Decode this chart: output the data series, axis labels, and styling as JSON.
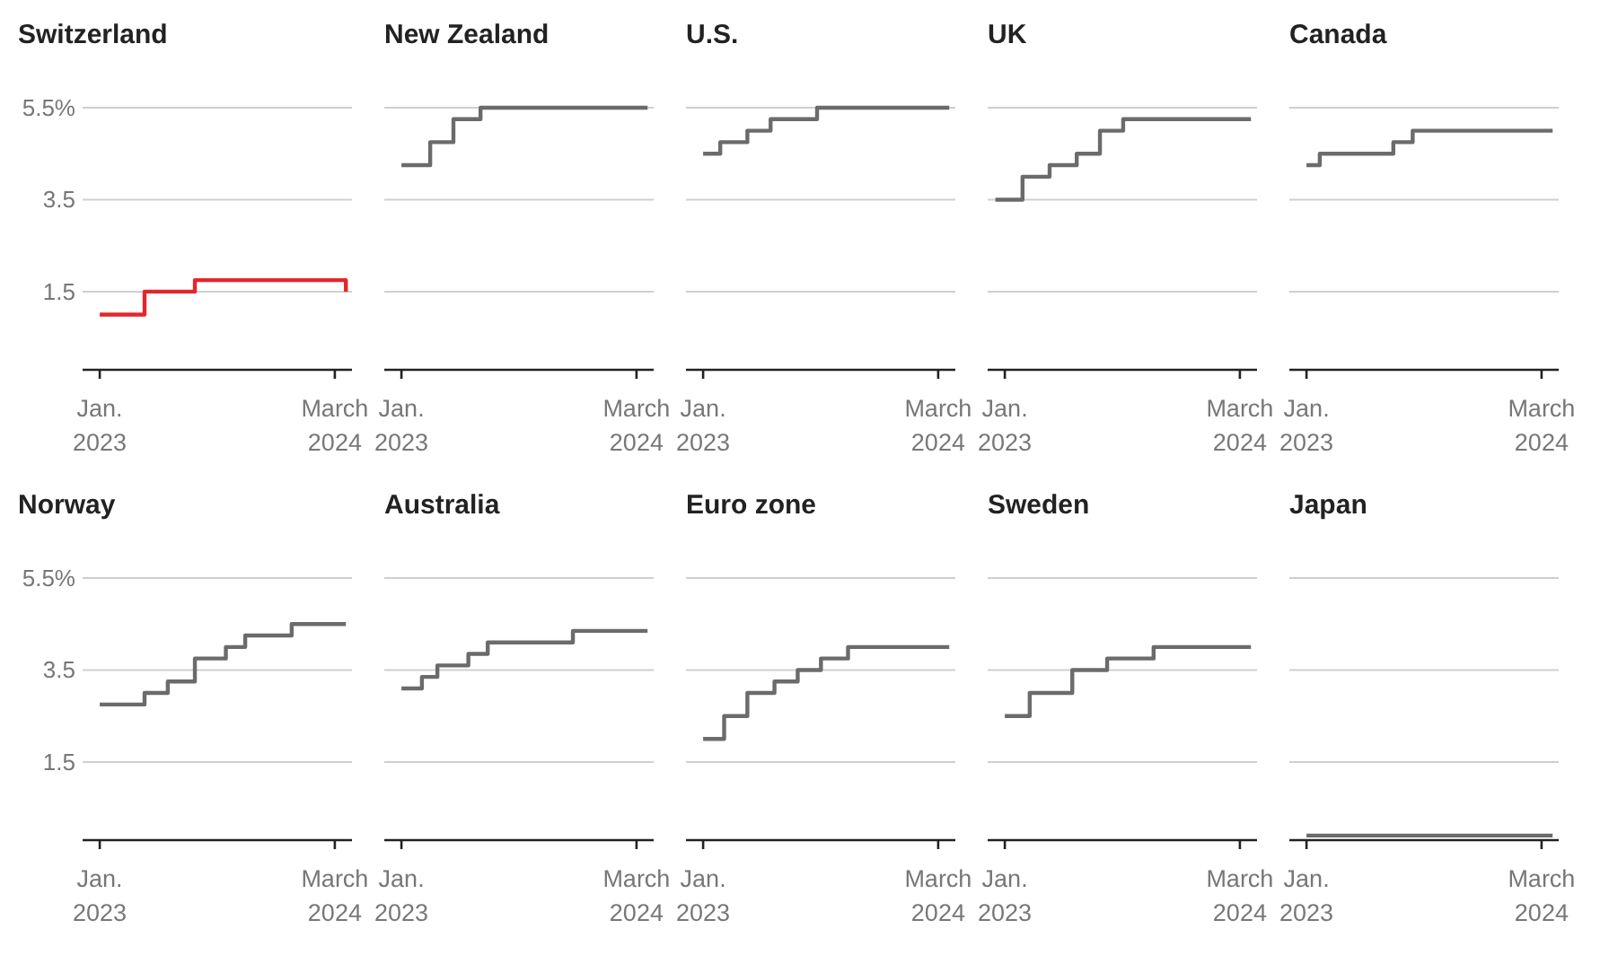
{
  "chart_data": [
    {
      "type": "step",
      "title": "Switzerland",
      "color": "#e3262b",
      "x": [
        "2023-01-01",
        "2023-03-23",
        "2023-06-22",
        "2024-03-21"
      ],
      "values": [
        1.0,
        1.5,
        1.75,
        1.5
      ],
      "xlim": [
        "2022-12-01",
        "2024-04-01"
      ],
      "xticks": [
        {
          "value": "2023-01-01",
          "label": "Jan. 2023"
        },
        {
          "value": "2024-03-01",
          "label": "March 2024"
        }
      ],
      "ylim": [
        -0.2,
        5.5
      ],
      "yticks": [
        {
          "value": 5.5,
          "label": "5.5%"
        },
        3.5,
        1.5
      ],
      "grid": "y"
    },
    {
      "type": "step",
      "title": "New Zealand",
      "color": "#6b6b6b",
      "x": [
        "2023-01-01",
        "2023-02-22",
        "2023-04-05",
        "2023-05-24",
        "2024-03-21"
      ],
      "values": [
        4.25,
        4.75,
        5.25,
        5.5,
        5.5
      ],
      "xlim": [
        "2022-12-01",
        "2024-04-01"
      ],
      "xticks": [
        {
          "value": "2023-01-01",
          "label": "Jan. 2023"
        },
        {
          "value": "2024-03-01",
          "label": "March 2024"
        }
      ],
      "ylim": [
        -0.2,
        5.5
      ],
      "yticks": [
        5.5,
        3.5,
        1.5
      ],
      "grid": "y",
      "tick_labels": "x"
    },
    {
      "type": "step",
      "title": "U.S.",
      "color": "#6b6b6b",
      "x": [
        "2023-01-01",
        "2023-02-01",
        "2023-03-22",
        "2023-05-03",
        "2023-07-26",
        "2024-03-21"
      ],
      "values": [
        4.5,
        4.75,
        5.0,
        5.25,
        5.5,
        5.5
      ],
      "xlim": [
        "2022-12-01",
        "2024-04-01"
      ],
      "xticks": [
        {
          "value": "2023-01-01",
          "label": "Jan. 2023"
        },
        {
          "value": "2024-03-01",
          "label": "March 2024"
        }
      ],
      "ylim": [
        -0.2,
        5.5
      ],
      "yticks": [
        5.5,
        3.5,
        1.5
      ],
      "grid": "y",
      "tick_labels": "x"
    },
    {
      "type": "step",
      "title": "UK",
      "color": "#6b6b6b",
      "x": [
        "2022-12-15",
        "2023-02-02",
        "2023-03-23",
        "2023-05-11",
        "2023-06-22",
        "2023-08-03",
        "2024-03-21"
      ],
      "values": [
        3.5,
        4.0,
        4.25,
        4.5,
        5.0,
        5.25,
        5.25
      ],
      "xlim": [
        "2022-12-01",
        "2024-04-01"
      ],
      "xticks": [
        {
          "value": "2023-01-01",
          "label": "Jan. 2023"
        },
        {
          "value": "2024-03-01",
          "label": "March 2024"
        }
      ],
      "ylim": [
        -0.2,
        5.5
      ],
      "yticks": [
        5.5,
        3.5,
        1.5
      ],
      "grid": "y",
      "tick_labels": "x"
    },
    {
      "type": "step",
      "title": "Canada",
      "color": "#6b6b6b",
      "x": [
        "2023-01-01",
        "2023-01-25",
        "2023-06-07",
        "2023-07-12",
        "2024-03-21"
      ],
      "values": [
        4.25,
        4.5,
        4.75,
        5.0,
        5.0
      ],
      "xlim": [
        "2022-12-01",
        "2024-04-01"
      ],
      "xticks": [
        {
          "value": "2023-01-01",
          "label": "Jan. 2023"
        },
        {
          "value": "2024-03-01",
          "label": "March 2024"
        }
      ],
      "ylim": [
        -0.2,
        5.5
      ],
      "yticks": [
        5.5,
        3.5,
        1.5
      ],
      "grid": "y",
      "tick_labels": "x"
    },
    {
      "type": "step",
      "title": "Norway",
      "color": "#6b6b6b",
      "x": [
        "2023-01-01",
        "2023-03-23",
        "2023-05-04",
        "2023-06-22",
        "2023-08-17",
        "2023-09-21",
        "2023-12-14",
        "2024-03-21"
      ],
      "values": [
        2.75,
        3.0,
        3.25,
        3.75,
        4.0,
        4.25,
        4.5,
        4.5
      ],
      "xlim": [
        "2022-12-01",
        "2024-04-01"
      ],
      "xticks": [
        {
          "value": "2023-01-01",
          "label": "Jan. 2023"
        },
        {
          "value": "2024-03-01",
          "label": "March 2024"
        }
      ],
      "ylim": [
        -0.2,
        5.5
      ],
      "yticks": [
        {
          "value": 5.5,
          "label": "5.5%"
        },
        3.5,
        1.5
      ],
      "grid": "y"
    },
    {
      "type": "step",
      "title": "Australia",
      "color": "#6b6b6b",
      "x": [
        "2023-01-01",
        "2023-02-07",
        "2023-03-07",
        "2023-05-02",
        "2023-06-06",
        "2023-11-07",
        "2024-03-21"
      ],
      "values": [
        3.1,
        3.35,
        3.6,
        3.85,
        4.1,
        4.35,
        4.35
      ],
      "xlim": [
        "2022-12-01",
        "2024-04-01"
      ],
      "xticks": [
        {
          "value": "2023-01-01",
          "label": "Jan. 2023"
        },
        {
          "value": "2024-03-01",
          "label": "March 2024"
        }
      ],
      "ylim": [
        -0.2,
        5.5
      ],
      "yticks": [
        5.5,
        3.5,
        1.5
      ],
      "grid": "y",
      "tick_labels": "x"
    },
    {
      "type": "step",
      "title": "Euro zone",
      "color": "#6b6b6b",
      "x": [
        "2023-01-01",
        "2023-02-08",
        "2023-03-22",
        "2023-05-10",
        "2023-06-21",
        "2023-08-02",
        "2023-09-20",
        "2024-03-21"
      ],
      "values": [
        2.0,
        2.5,
        3.0,
        3.25,
        3.5,
        3.75,
        4.0,
        4.0
      ],
      "xlim": [
        "2022-12-01",
        "2024-04-01"
      ],
      "xticks": [
        {
          "value": "2023-01-01",
          "label": "Jan. 2023"
        },
        {
          "value": "2024-03-01",
          "label": "March 2024"
        }
      ],
      "ylim": [
        -0.2,
        5.5
      ],
      "yticks": [
        5.5,
        3.5,
        1.5
      ],
      "grid": "y",
      "tick_labels": "x"
    },
    {
      "type": "step",
      "title": "Sweden",
      "color": "#6b6b6b",
      "x": [
        "2023-01-01",
        "2023-02-15",
        "2023-05-03",
        "2023-07-05",
        "2023-09-27",
        "2024-03-21"
      ],
      "values": [
        2.5,
        3.0,
        3.5,
        3.75,
        4.0,
        4.0
      ],
      "xlim": [
        "2022-12-01",
        "2024-04-01"
      ],
      "xticks": [
        {
          "value": "2023-01-01",
          "label": "Jan. 2023"
        },
        {
          "value": "2024-03-01",
          "label": "March 2024"
        }
      ],
      "ylim": [
        -0.2,
        5.5
      ],
      "yticks": [
        5.5,
        3.5,
        1.5
      ],
      "grid": "y",
      "tick_labels": "x"
    },
    {
      "type": "step",
      "title": "Japan",
      "color": "#6b6b6b",
      "x": [
        "2023-01-01",
        "2024-03-21"
      ],
      "values": [
        -0.1,
        -0.1
      ],
      "xlim": [
        "2022-12-01",
        "2024-04-01"
      ],
      "xticks": [
        {
          "value": "2023-01-01",
          "label": "Jan. 2023"
        },
        {
          "value": "2024-03-01",
          "label": "March 2024"
        }
      ],
      "ylim": [
        -0.2,
        5.5
      ],
      "yticks": [
        5.5,
        3.5,
        1.5
      ],
      "grid": "y",
      "tick_labels": "x"
    }
  ]
}
